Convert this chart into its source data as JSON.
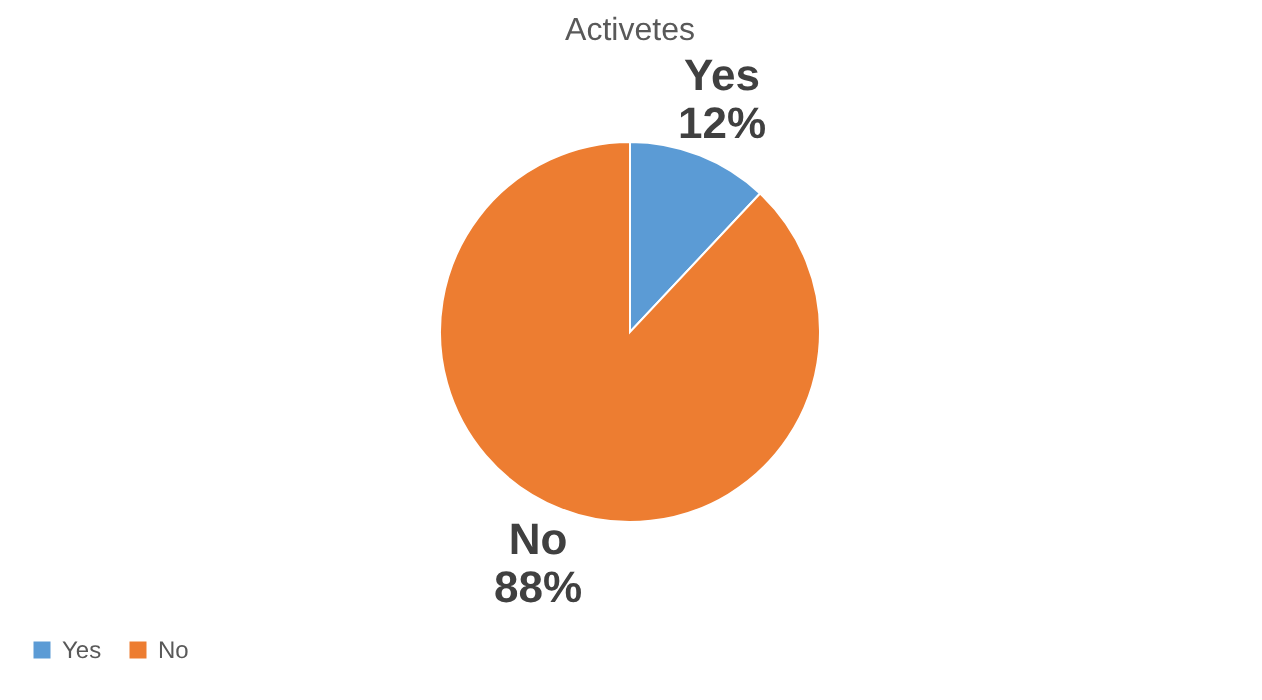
{
  "chart_data": {
    "type": "pie",
    "title": "Activetes",
    "categories": [
      "Yes",
      "No"
    ],
    "values": [
      12,
      88
    ],
    "colors": [
      "#5b9bd5",
      "#ed7d31"
    ],
    "value_labels": [
      "12%",
      "88%"
    ],
    "legend": "bottom"
  }
}
